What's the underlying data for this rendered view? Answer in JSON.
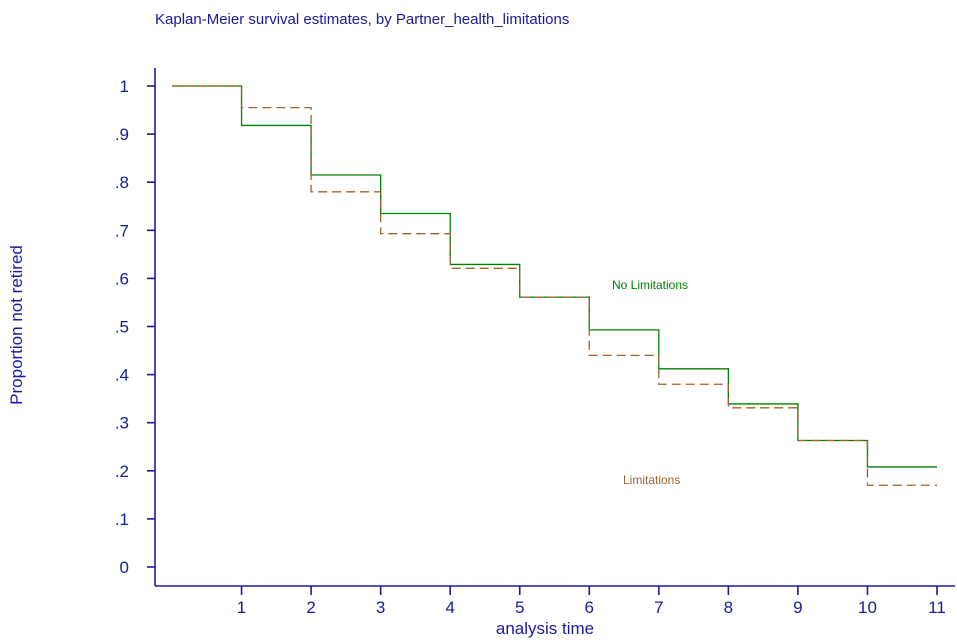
{
  "chart_data": {
    "type": "line",
    "title": "Kaplan-Meier survival estimates, by Partner_health_limitations",
    "xlabel": "analysis time",
    "ylabel": "Proportion not retired",
    "xlim": [
      0,
      11
    ],
    "ylim": [
      0,
      1
    ],
    "x_ticks": [
      "1",
      "2",
      "3",
      "4",
      "5",
      "6",
      "7",
      "8",
      "9",
      "10",
      "11"
    ],
    "y_ticks": [
      "0",
      ".1",
      ".2",
      ".3",
      ".4",
      ".5",
      ".6",
      ".7",
      ".8",
      ".9",
      "1"
    ],
    "grid": false,
    "step": true,
    "series": [
      {
        "name": "No Limitations",
        "color": "#008000",
        "dash": "solid",
        "x": [
          0,
          1,
          2,
          3,
          4,
          5,
          6,
          7,
          8,
          9,
          10,
          11
        ],
        "values": [
          1.0,
          0.918,
          0.815,
          0.735,
          0.629,
          0.561,
          0.493,
          0.412,
          0.339,
          0.263,
          0.208,
          0.208
        ]
      },
      {
        "name": "Limitations",
        "color": "#a0622d",
        "dash": "dashed",
        "x": [
          0,
          1,
          2,
          3,
          4,
          5,
          6,
          7,
          8,
          9,
          10,
          11
        ],
        "values": [
          1.0,
          0.955,
          0.78,
          0.693,
          0.621,
          0.561,
          0.44,
          0.38,
          0.331,
          0.263,
          0.17,
          0.17
        ]
      }
    ]
  }
}
